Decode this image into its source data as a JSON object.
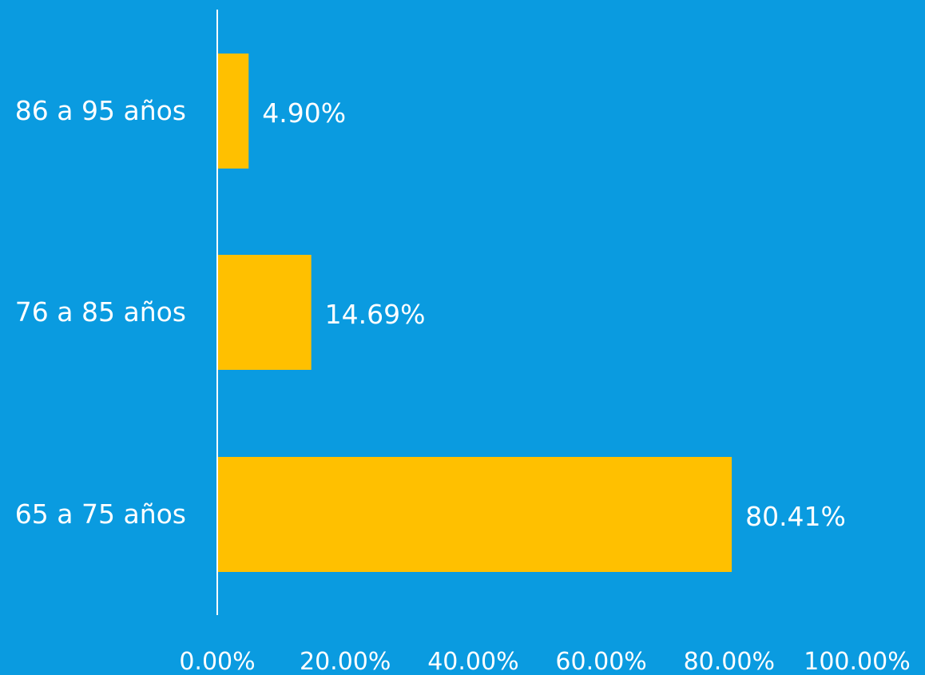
{
  "chart_data": {
    "type": "bar",
    "orientation": "horizontal",
    "categories": [
      "86 a 95 años",
      "76 a 85 años",
      "65 a 75 años"
    ],
    "values": [
      4.9,
      14.69,
      80.41
    ],
    "data_labels": [
      "4.90%",
      "14.69%",
      "80.41%"
    ],
    "x_ticks": [
      0,
      20,
      40,
      60,
      80,
      100
    ],
    "x_tick_labels": [
      "0.00%",
      "20.00%",
      "40.00%",
      "60.00%",
      "80.00%",
      "100.00%"
    ],
    "xlim": [
      0,
      100
    ],
    "title": "",
    "xlabel": "",
    "ylabel": "",
    "grid": false,
    "legend": "none",
    "colors": {
      "background": "#0A9BE0",
      "bar": "#FFC000",
      "axis": "#FFFFFF",
      "text": "#FFFFFF"
    }
  }
}
